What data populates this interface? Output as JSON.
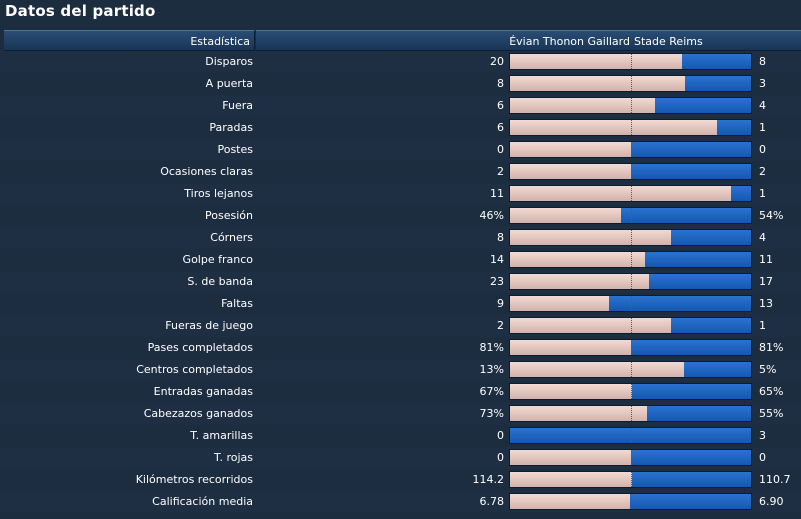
{
  "title": "Datos del partido",
  "header": {
    "stat_col": "Estadística",
    "home_team": "Évian Thonon Gaillard",
    "away_team": "Stade Reims"
  },
  "colors": {
    "background": "#1d2d40",
    "header": "#1f4068",
    "home_bar": "#e2c6be",
    "away_bar": "#1c64c0"
  },
  "stats": [
    {
      "label": "Disparos",
      "home": "20",
      "away": "8",
      "home_share": 0.714
    },
    {
      "label": "A puerta",
      "home": "8",
      "away": "3",
      "home_share": 0.727
    },
    {
      "label": "Fuera",
      "home": "6",
      "away": "4",
      "home_share": 0.6
    },
    {
      "label": "Paradas",
      "home": "6",
      "away": "1",
      "home_share": 0.857
    },
    {
      "label": "Postes",
      "home": "0",
      "away": "0",
      "home_share": 0.5
    },
    {
      "label": "Ocasiones claras",
      "home": "2",
      "away": "2",
      "home_share": 0.5
    },
    {
      "label": "Tiros lejanos",
      "home": "11",
      "away": "1",
      "home_share": 0.917
    },
    {
      "label": "Posesión",
      "home": "46%",
      "away": "54%",
      "home_share": 0.46
    },
    {
      "label": "Córners",
      "home": "8",
      "away": "4",
      "home_share": 0.667
    },
    {
      "label": "Golpe franco",
      "home": "14",
      "away": "11",
      "home_share": 0.56
    },
    {
      "label": "S. de banda",
      "home": "23",
      "away": "17",
      "home_share": 0.575
    },
    {
      "label": "Faltas",
      "home": "9",
      "away": "13",
      "home_share": 0.409
    },
    {
      "label": "Fueras de juego",
      "home": "2",
      "away": "1",
      "home_share": 0.667
    },
    {
      "label": "Pases completados",
      "home": "81%",
      "away": "81%",
      "home_share": 0.5
    },
    {
      "label": "Centros completados",
      "home": "13%",
      "away": "5%",
      "home_share": 0.722
    },
    {
      "label": "Entradas ganadas",
      "home": "67%",
      "away": "65%",
      "home_share": 0.508
    },
    {
      "label": "Cabezazos ganados",
      "home": "73%",
      "away": "55%",
      "home_share": 0.57
    },
    {
      "label": "T. amarillas",
      "home": "0",
      "away": "3",
      "home_share": 0.0
    },
    {
      "label": "T. rojas",
      "home": "0",
      "away": "0",
      "home_share": 0.5
    },
    {
      "label": "Kilómetros recorridos",
      "home": "114.2",
      "away": "110.7",
      "home_share": 0.508
    },
    {
      "label": "Calificación media",
      "home": "6.78",
      "away": "6.90",
      "home_share": 0.496
    }
  ]
}
